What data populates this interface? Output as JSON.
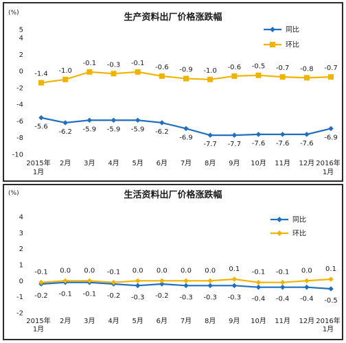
{
  "chart_data": [
    {
      "type": "line",
      "title": "生产资料出厂价格涨跌幅",
      "unit_label": "(%)",
      "categories": [
        [
          "2015年",
          "1月"
        ],
        [
          "2月"
        ],
        [
          "3月"
        ],
        [
          "4月"
        ],
        [
          "5月"
        ],
        [
          "6月"
        ],
        [
          "7月"
        ],
        [
          "8月"
        ],
        [
          "9月"
        ],
        [
          "10月"
        ],
        [
          "11月"
        ],
        [
          "12月"
        ],
        [
          "2016年",
          "1月"
        ]
      ],
      "ylim": [
        -10,
        5
      ],
      "yticks": [
        5,
        4,
        2,
        0,
        -2,
        -4,
        -6,
        -8,
        -10
      ],
      "legend_position": "top-right",
      "series": [
        {
          "name": "同比",
          "color": "#1f6fbf",
          "values": [
            -5.6,
            -6.2,
            -5.9,
            -5.9,
            -5.9,
            -6.2,
            -6.9,
            -7.7,
            -7.7,
            -7.6,
            -7.6,
            -7.6,
            -6.9
          ],
          "labels": [
            "-5.6",
            "-6.2",
            "-5.9",
            "-5.9",
            "-5.9",
            "-6.2",
            "-6.9",
            "-7.7",
            "-7.7",
            "-7.6",
            "-7.6",
            "-7.6",
            "-6.9"
          ]
        },
        {
          "name": "环比",
          "color": "#f0b400",
          "values": [
            -1.4,
            -1.0,
            -0.1,
            -0.3,
            -0.1,
            -0.6,
            -0.9,
            -1.0,
            -0.6,
            -0.5,
            -0.7,
            -0.8,
            -0.7
          ],
          "labels": [
            "-1.4",
            "-1.0",
            "-0.1",
            "-0.3",
            "-0.1",
            "-0.6",
            "-0.9",
            "-1.0",
            "-0.6",
            "-0.5",
            "-0.7",
            "-0.8",
            "-0.7"
          ]
        }
      ]
    },
    {
      "type": "line",
      "title": "生活资料出厂价格涨跌幅",
      "unit_label": "(%)",
      "categories": [
        [
          "2015年",
          "1月"
        ],
        [
          "2月"
        ],
        [
          "3月"
        ],
        [
          "4月"
        ],
        [
          "5月"
        ],
        [
          "6月"
        ],
        [
          "7月"
        ],
        [
          "8月"
        ],
        [
          "9月"
        ],
        [
          "10月"
        ],
        [
          "11月"
        ],
        [
          "12月"
        ],
        [
          "2016年",
          "1月"
        ]
      ],
      "ylim": [
        -2,
        4
      ],
      "yticks": [
        4,
        3,
        2,
        1,
        0,
        -1,
        -2
      ],
      "legend_position": "top-right",
      "series": [
        {
          "name": "同比",
          "color": "#1f6fbf",
          "values": [
            -0.2,
            -0.1,
            -0.1,
            -0.2,
            -0.3,
            -0.2,
            -0.3,
            -0.3,
            -0.3,
            -0.4,
            -0.4,
            -0.4,
            -0.5
          ],
          "labels": [
            "-0.2",
            "-0.1",
            "-0.1",
            "-0.2",
            "-0.3",
            "-0.2",
            "-0.3",
            "-0.3",
            "-0.3",
            "-0.4",
            "-0.4",
            "-0.4",
            "-0.5"
          ]
        },
        {
          "name": "环比",
          "color": "#f0b400",
          "values": [
            -0.1,
            0.0,
            0.0,
            -0.1,
            0.0,
            0.0,
            0.0,
            0.0,
            0.1,
            -0.1,
            -0.1,
            0.0,
            0.1
          ],
          "labels": [
            "-0.1",
            "0.0",
            "0.0",
            "-0.1",
            "0.0",
            "0.0",
            "0.0",
            "0.0",
            "0.1",
            "-0.1",
            "-0.1",
            "0.0",
            "0.1"
          ]
        }
      ]
    }
  ]
}
